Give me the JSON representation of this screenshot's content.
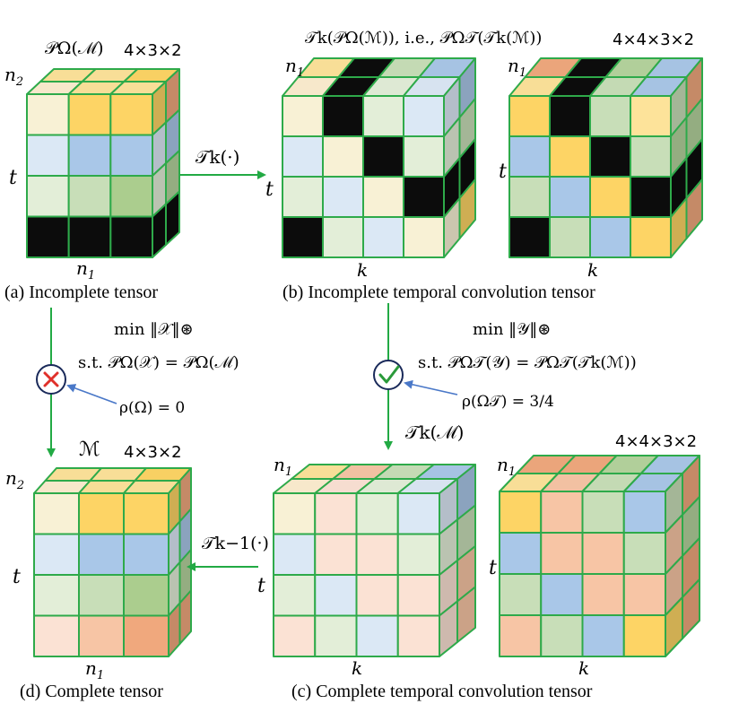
{
  "colors": {
    "edge": "#2eaa4a",
    "arrow_green": "#22aa44",
    "arrow_blue": "#4a78c8",
    "cross": "#e0302a",
    "check": "#2a9a3a",
    "circle": "#1a2a5a"
  },
  "palette": {
    "Y": "#fde39a",
    "O": "#fdd465",
    "Q": "#f8f1d5",
    "L": "#dbe8f5",
    "B": "#a9c7e8",
    "G": "#e3eed8",
    "M": "#c8deb8",
    "H": "#abcd8e",
    "K": "#0c0c0c",
    "W": "#f5f9ef",
    "P": "#fbe2d4",
    "R": "#f7c5a5",
    "S": "#f0a87d",
    "C": "#c8e0c0",
    "D": "#bcd3ec",
    "N": "#b5d39d",
    "A": "#f3bd9a",
    "E": "#fcedcf"
  },
  "panels": {
    "a": {
      "caption": "(a) Incomplete tensor",
      "label": "𝒫Ω(ℳ)",
      "dims": "4×3×2",
      "axis_top": "n2",
      "axis_left": "t",
      "axis_bottom": "n1"
    },
    "b": {
      "caption": "(b) Incomplete temporal convolution tensor",
      "label": "𝒯k(𝒫Ω(ℳ)), i.e., 𝒫Ω𝒯(𝒯k(ℳ))",
      "dims": "4×4×3×2",
      "axis_top1": "n1",
      "axis_top2": "n1",
      "axis_left1": "t",
      "axis_left2": "t",
      "axis_bottom1": "k",
      "axis_bottom2": "k"
    },
    "c": {
      "caption": "(c) Complete temporal convolution tensor",
      "label": "𝒯k(ℳ)",
      "dims": "4×4×3×2",
      "axis_top1": "n1",
      "axis_top2": "n1",
      "axis_left1": "t",
      "axis_left2": "t",
      "axis_bottom1": "k",
      "axis_bottom2": "k"
    },
    "d": {
      "caption": "(d) Complete tensor",
      "label": "ℳ",
      "dims": "4×3×2",
      "axis_top": "n2",
      "axis_left": "t",
      "axis_bottom": "n1"
    }
  },
  "arrows": {
    "forward": "𝒯k(·)",
    "inverse": "𝒯k−1(·)"
  },
  "optimization": {
    "left": {
      "objective": "min ‖𝒳‖⊛",
      "constraint": "s.t. 𝒫Ω(𝒳) = 𝒫Ω(ℳ)",
      "rate": "ρ(Ω) = 0",
      "result": "fail"
    },
    "right": {
      "objective": "min ‖𝒴‖⊛",
      "constraint": "s.t. 𝒫Ω𝒯(𝒴) = 𝒫Ω𝒯(𝒯k(ℳ))",
      "rate": "ρ(Ω𝒯) = 3/4",
      "result": "success"
    }
  }
}
